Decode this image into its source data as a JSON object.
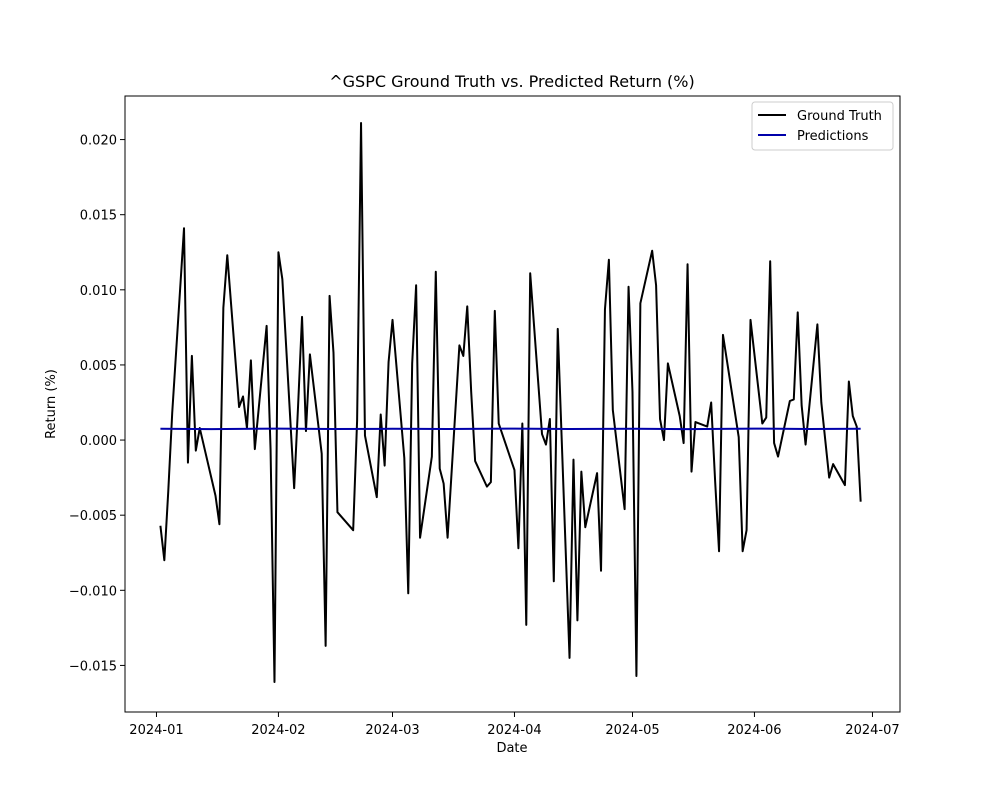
{
  "chart_data": {
    "type": "line",
    "title": "^GSPC Ground Truth vs. Predicted Return (%)",
    "xlabel": "Date",
    "ylabel": "Return (%)",
    "x_tick_labels": [
      "2024-01",
      "2024-02",
      "2024-03",
      "2024-04",
      "2024-05",
      "2024-06",
      "2024-07"
    ],
    "x_tick_dates": [
      "2024-01-01",
      "2024-02-01",
      "2024-03-01",
      "2024-04-01",
      "2024-05-01",
      "2024-06-01",
      "2024-07-01"
    ],
    "y_ticks": [
      -0.015,
      -0.01,
      -0.005,
      0.0,
      0.005,
      0.01,
      0.015,
      0.02
    ],
    "y_tick_labels": [
      "−0.015",
      "−0.010",
      "−0.005",
      "0.000",
      "0.005",
      "0.010",
      "0.015",
      "0.020"
    ],
    "xlim": [
      "2023-12-24",
      "2024-07-08"
    ],
    "ylim": [
      -0.0181,
      0.0229
    ],
    "grid": false,
    "legend_position": "top-right",
    "series": [
      {
        "name": "Ground Truth",
        "color": "#000000",
        "points": [
          [
            "2024-01-02",
            -0.0057
          ],
          [
            "2024-01-03",
            -0.008
          ],
          [
            "2024-01-04",
            -0.0034
          ],
          [
            "2024-01-05",
            0.0018
          ],
          [
            "2024-01-08",
            0.0141
          ],
          [
            "2024-01-09",
            -0.0015
          ],
          [
            "2024-01-10",
            0.0056
          ],
          [
            "2024-01-11",
            -0.0007
          ],
          [
            "2024-01-12",
            0.0008
          ],
          [
            "2024-01-16",
            -0.0037
          ],
          [
            "2024-01-17",
            -0.0056
          ],
          [
            "2024-01-18",
            0.0088
          ],
          [
            "2024-01-19",
            0.0123
          ],
          [
            "2024-01-22",
            0.0022
          ],
          [
            "2024-01-23",
            0.0029
          ],
          [
            "2024-01-24",
            0.0008
          ],
          [
            "2024-01-25",
            0.0053
          ],
          [
            "2024-01-26",
            -0.0006
          ],
          [
            "2024-01-29",
            0.0076
          ],
          [
            "2024-01-30",
            -0.0006
          ],
          [
            "2024-01-31",
            -0.0161
          ],
          [
            "2024-02-01",
            0.0125
          ],
          [
            "2024-02-02",
            0.0107
          ],
          [
            "2024-02-05",
            -0.0032
          ],
          [
            "2024-02-06",
            0.0023
          ],
          [
            "2024-02-07",
            0.0082
          ],
          [
            "2024-02-08",
            0.0006
          ],
          [
            "2024-02-09",
            0.0057
          ],
          [
            "2024-02-12",
            -0.0009
          ],
          [
            "2024-02-13",
            -0.0137
          ],
          [
            "2024-02-14",
            0.0096
          ],
          [
            "2024-02-15",
            0.0058
          ],
          [
            "2024-02-16",
            -0.0048
          ],
          [
            "2024-02-20",
            -0.006
          ],
          [
            "2024-02-21",
            0.0013
          ],
          [
            "2024-02-22",
            0.0211
          ],
          [
            "2024-02-23",
            0.0003
          ],
          [
            "2024-02-26",
            -0.0038
          ],
          [
            "2024-02-27",
            0.0017
          ],
          [
            "2024-02-28",
            -0.0017
          ],
          [
            "2024-02-29",
            0.0052
          ],
          [
            "2024-03-01",
            0.008
          ],
          [
            "2024-03-04",
            -0.0012
          ],
          [
            "2024-03-05",
            -0.0102
          ],
          [
            "2024-03-06",
            0.0051
          ],
          [
            "2024-03-07",
            0.0103
          ],
          [
            "2024-03-08",
            -0.0065
          ],
          [
            "2024-03-11",
            -0.0011
          ],
          [
            "2024-03-12",
            0.0112
          ],
          [
            "2024-03-13",
            -0.0019
          ],
          [
            "2024-03-14",
            -0.0029
          ],
          [
            "2024-03-15",
            -0.0065
          ],
          [
            "2024-03-18",
            0.0063
          ],
          [
            "2024-03-19",
            0.0056
          ],
          [
            "2024-03-20",
            0.0089
          ],
          [
            "2024-03-21",
            0.0032
          ],
          [
            "2024-03-22",
            -0.0014
          ],
          [
            "2024-03-25",
            -0.0031
          ],
          [
            "2024-03-26",
            -0.0028
          ],
          [
            "2024-03-27",
            0.0086
          ],
          [
            "2024-03-28",
            0.0011
          ],
          [
            "2024-04-01",
            -0.002
          ],
          [
            "2024-04-02",
            -0.0072
          ],
          [
            "2024-04-03",
            0.0011
          ],
          [
            "2024-04-04",
            -0.0123
          ],
          [
            "2024-04-05",
            0.0111
          ],
          [
            "2024-04-08",
            0.0004
          ],
          [
            "2024-04-09",
            -0.0003
          ],
          [
            "2024-04-10",
            0.0014
          ],
          [
            "2024-04-11",
            -0.0094
          ],
          [
            "2024-04-12",
            0.0074
          ],
          [
            "2024-04-15",
            -0.0145
          ],
          [
            "2024-04-16",
            -0.0013
          ],
          [
            "2024-04-17",
            -0.012
          ],
          [
            "2024-04-18",
            -0.0021
          ],
          [
            "2024-04-19",
            -0.0058
          ],
          [
            "2024-04-22",
            -0.0022
          ],
          [
            "2024-04-23",
            -0.0087
          ],
          [
            "2024-04-24",
            0.0087
          ],
          [
            "2024-04-25",
            0.012
          ],
          [
            "2024-04-26",
            0.002
          ],
          [
            "2024-04-29",
            -0.0046
          ],
          [
            "2024-04-30",
            0.0102
          ],
          [
            "2024-05-01",
            0.0032
          ],
          [
            "2024-05-02",
            -0.0157
          ],
          [
            "2024-05-03",
            0.0091
          ],
          [
            "2024-05-06",
            0.0126
          ],
          [
            "2024-05-07",
            0.0103
          ],
          [
            "2024-05-08",
            0.0014
          ],
          [
            "2024-05-09",
            0.0
          ],
          [
            "2024-05-10",
            0.0051
          ],
          [
            "2024-05-13",
            0.0016
          ],
          [
            "2024-05-14",
            -0.0002
          ],
          [
            "2024-05-15",
            0.0117
          ],
          [
            "2024-05-16",
            -0.0021
          ],
          [
            "2024-05-17",
            0.0012
          ],
          [
            "2024-05-20",
            0.0009
          ],
          [
            "2024-05-21",
            0.0025
          ],
          [
            "2024-05-22",
            -0.0027
          ],
          [
            "2024-05-23",
            -0.0074
          ],
          [
            "2024-05-24",
            0.007
          ],
          [
            "2024-05-28",
            0.0002
          ],
          [
            "2024-05-29",
            -0.0074
          ],
          [
            "2024-05-30",
            -0.006
          ],
          [
            "2024-05-31",
            0.008
          ],
          [
            "2024-06-03",
            0.0011
          ],
          [
            "2024-06-04",
            0.0015
          ],
          [
            "2024-06-05",
            0.0119
          ],
          [
            "2024-06-06",
            -0.0002
          ],
          [
            "2024-06-07",
            -0.0011
          ],
          [
            "2024-06-10",
            0.0026
          ],
          [
            "2024-06-11",
            0.0027
          ],
          [
            "2024-06-12",
            0.0085
          ],
          [
            "2024-06-13",
            0.0023
          ],
          [
            "2024-06-14",
            -0.0003
          ],
          [
            "2024-06-17",
            0.0077
          ],
          [
            "2024-06-18",
            0.0025
          ],
          [
            "2024-06-20",
            -0.0025
          ],
          [
            "2024-06-21",
            -0.0016
          ],
          [
            "2024-06-24",
            -0.003
          ],
          [
            "2024-06-25",
            0.0039
          ],
          [
            "2024-06-26",
            0.0016
          ],
          [
            "2024-06-27",
            0.0009
          ],
          [
            "2024-06-28",
            -0.0041
          ]
        ]
      },
      {
        "name": "Predictions",
        "color": "#0000aa",
        "points": [
          [
            "2024-01-02",
            0.00075
          ],
          [
            "2024-01-15",
            0.00073
          ],
          [
            "2024-02-01",
            0.00076
          ],
          [
            "2024-02-15",
            0.00074
          ],
          [
            "2024-03-01",
            0.00075
          ],
          [
            "2024-03-15",
            0.00074
          ],
          [
            "2024-04-01",
            0.00076
          ],
          [
            "2024-04-15",
            0.00074
          ],
          [
            "2024-05-01",
            0.00075
          ],
          [
            "2024-05-15",
            0.00073
          ],
          [
            "2024-06-01",
            0.00076
          ],
          [
            "2024-06-15",
            0.00074
          ],
          [
            "2024-06-28",
            0.00075
          ]
        ]
      }
    ]
  }
}
